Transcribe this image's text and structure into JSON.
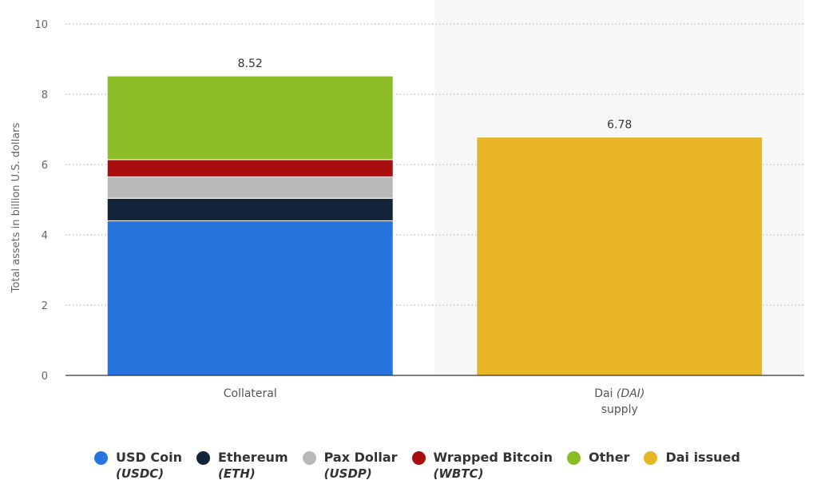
{
  "chart_data": {
    "type": "bar",
    "stacked": true,
    "ylabel": "Total assets in billion U.S. dollars",
    "ylim": [
      0,
      10
    ],
    "yticks": [
      0,
      2,
      4,
      6,
      8,
      10
    ],
    "grid": true,
    "legend_position": "bottom",
    "categories": [
      {
        "name": "Collateral",
        "italic": "",
        "line2": "",
        "total_label": "8.52"
      },
      {
        "name": "Dai ",
        "italic": "(DAI)",
        "line2": "supply",
        "total_label": "6.78"
      }
    ],
    "series": [
      {
        "name": "USD Coin",
        "sub": "(USDC)",
        "color": "#2874de",
        "values": [
          4.4,
          0
        ]
      },
      {
        "name": "Ethereum",
        "sub": "(ETH)",
        "color": "#13253b",
        "values": [
          0.64,
          0
        ]
      },
      {
        "name": "Pax Dollar",
        "sub": "(USDP)",
        "color": "#b8b8b8",
        "values": [
          0.61,
          0
        ]
      },
      {
        "name": "Wrapped Bitcoin",
        "sub": "(WBTC)",
        "color": "#a90e0e",
        "values": [
          0.49,
          0
        ]
      },
      {
        "name": "Other",
        "sub": "",
        "color": "#8cbd27",
        "values": [
          2.38,
          0
        ]
      },
      {
        "name": "Dai issued",
        "sub": "",
        "color": "#e8b526",
        "values": [
          0,
          6.78
        ]
      }
    ]
  }
}
